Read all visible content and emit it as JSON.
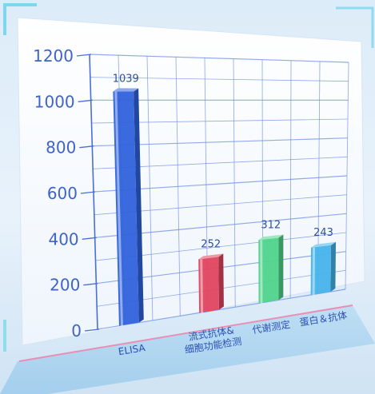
{
  "chart_data": {
    "type": "bar",
    "categories": [
      "ELISA",
      "流式抗体&细胞功能检测",
      "代谢测定",
      "蛋白＆抗体"
    ],
    "category_lines": [
      [
        "ELISA"
      ],
      [
        "流式抗体&",
        "细胞功能检测"
      ],
      [
        "代谢测定"
      ],
      [
        "蛋白＆抗体"
      ]
    ],
    "values": [
      1039,
      252,
      312,
      243
    ],
    "value_labels": [
      "1039",
      "252",
      "312",
      "243"
    ],
    "bar_colors": [
      "#2f62db",
      "#e0445f",
      "#4fd38a",
      "#46b3ea"
    ],
    "ylim": [
      0,
      1200
    ],
    "yticks": [
      0,
      200,
      400,
      600,
      800,
      1000,
      1200
    ],
    "ytick_labels": [
      "0",
      "200",
      "400",
      "600",
      "800",
      "1000",
      "1200"
    ],
    "grid": true,
    "legend": "none"
  }
}
